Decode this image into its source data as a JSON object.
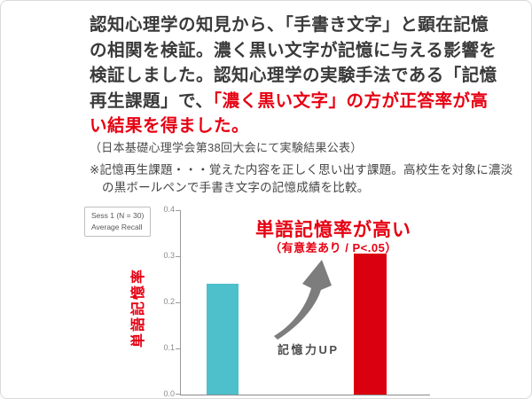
{
  "header": {
    "paragraph_dark": "認知心理学の知見から、「手書き文字」と顕在記憶の相関を検証。濃く黒い文字が記憶に与える影響を検証しました。認知心理学の実験手法である「記憶再生課題」で、",
    "paragraph_red": "「濃く黒い文字」の方が正答率が高い結果を得ました。",
    "source": "（日本基礎心理学会第38回大会にて実験結果公表）",
    "footnote": "※記憶再生課題・・・覚えた内容を正しく思い出す課題。高校生を対象に濃淡の黒ボールペンで手書き文字の記憶成績を比較。"
  },
  "chart": {
    "legend": {
      "line1": "Sess 1 (N = 30)",
      "line2": "Average Recall"
    },
    "title": "単語記憶率が高い",
    "subtitle": "（有意差あり / P<.05）",
    "ylabel": "単語記憶率",
    "arrow_label": "記憶力UP",
    "yticks": [
      "0.4",
      "0.3",
      "0.2",
      "0.1",
      "0.0"
    ]
  },
  "chart_data": {
    "type": "bar",
    "categories": [
      "",
      ""
    ],
    "values": [
      0.24,
      0.305
    ],
    "bar_colors": [
      "#4ec0cb",
      "#db000f"
    ],
    "title": "単語記憶率が高い",
    "subtitle": "（有意差あり / P<.05）",
    "xlabel": "",
    "ylabel": "単語記憶率",
    "ylim": [
      0,
      0.4
    ],
    "yticks": [
      0.0,
      0.1,
      0.2,
      0.3,
      0.4
    ],
    "grid": false,
    "legend": {
      "position": "top-left",
      "lines": [
        "Sess 1 (N = 30)",
        "Average Recall"
      ]
    },
    "annotations": [
      "記憶力UP"
    ]
  },
  "colors": {
    "accent_red": "#e60012",
    "bar_teal": "#4ec0cb",
    "bar_red": "#db000f",
    "text_dark": "#3a3a3a",
    "axis_gray": "#9a9a9a",
    "arrow_gray": "#7d7d7d"
  }
}
